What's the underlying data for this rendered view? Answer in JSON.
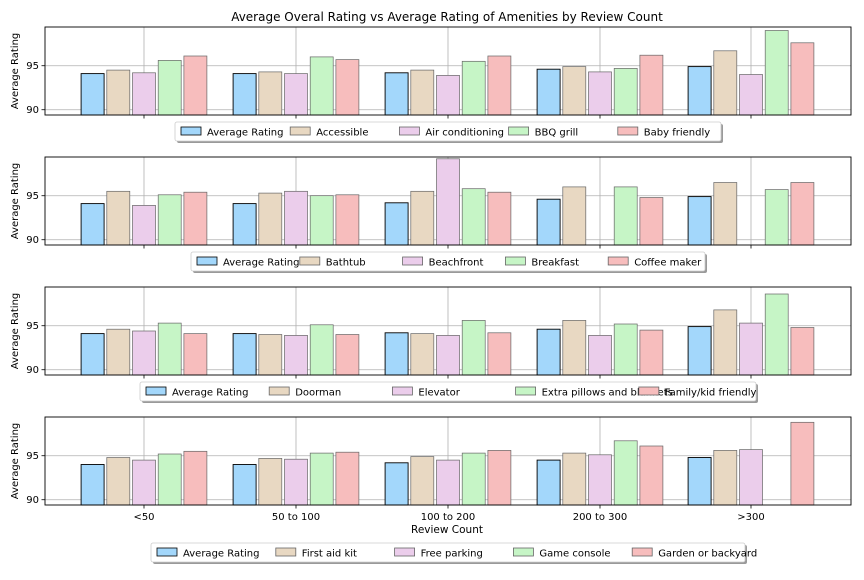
{
  "title": "Average Overal Rating vs Average Rating of Amenities by Review Count",
  "xlabel": "Review Count",
  "colors": {
    "series": [
      "#a3d7fb",
      "#e8d8c2",
      "#ebcdeb",
      "#c6f5c6",
      "#f7bdbd"
    ],
    "edge_first": "#000000",
    "edge_other": "#666666",
    "grid": "#b0b0b0"
  },
  "chart_data": [
    {
      "type": "bar",
      "categories": [
        "<50",
        "50 to 100",
        "100 to 200",
        "200 to 300",
        ">300"
      ],
      "ylabel": "Average Rating",
      "yticks": [
        90,
        95
      ],
      "ylim": [
        89.4,
        99.4
      ],
      "grid": true,
      "legend_position": "below",
      "series": [
        {
          "name": "Average Rating",
          "values": [
            94.1,
            94.1,
            94.2,
            94.6,
            94.9
          ]
        },
        {
          "name": "Accessible",
          "values": [
            94.5,
            94.3,
            94.5,
            94.9,
            96.7
          ]
        },
        {
          "name": "Air conditioning",
          "values": [
            94.2,
            94.1,
            93.9,
            94.3,
            94.0
          ]
        },
        {
          "name": "BBQ grill",
          "values": [
            95.6,
            96.0,
            95.5,
            94.7,
            99.0
          ]
        },
        {
          "name": "Baby friendly",
          "values": [
            96.1,
            95.7,
            96.1,
            96.2,
            97.6
          ]
        }
      ]
    },
    {
      "type": "bar",
      "categories": [
        "<50",
        "50 to 100",
        "100 to 200",
        "200 to 300",
        ">300"
      ],
      "ylabel": "Average Rating",
      "yticks": [
        90,
        95
      ],
      "ylim": [
        89.4,
        99.4
      ],
      "grid": true,
      "legend_position": "below",
      "series": [
        {
          "name": "Average Rating",
          "values": [
            94.1,
            94.1,
            94.2,
            94.6,
            94.9
          ]
        },
        {
          "name": "Bathtub",
          "values": [
            95.5,
            95.3,
            95.5,
            96.0,
            96.5
          ]
        },
        {
          "name": "Beachfront",
          "values": [
            93.9,
            95.5,
            99.2,
            null,
            null
          ]
        },
        {
          "name": "Breakfast",
          "values": [
            95.1,
            95.0,
            95.8,
            96.0,
            95.7
          ]
        },
        {
          "name": "Coffee maker",
          "values": [
            95.4,
            95.1,
            95.4,
            94.8,
            96.5
          ]
        }
      ]
    },
    {
      "type": "bar",
      "categories": [
        "<50",
        "50 to 100",
        "100 to 200",
        "200 to 300",
        ">300"
      ],
      "ylabel": "Average Rating",
      "yticks": [
        90,
        95
      ],
      "ylim": [
        89.4,
        99.4
      ],
      "grid": true,
      "legend_position": "below",
      "series": [
        {
          "name": "Average Rating",
          "values": [
            94.1,
            94.1,
            94.2,
            94.6,
            94.9
          ]
        },
        {
          "name": "Doorman",
          "values": [
            94.6,
            94.0,
            94.1,
            95.6,
            96.8
          ]
        },
        {
          "name": "Elevator",
          "values": [
            94.4,
            93.9,
            93.9,
            93.9,
            95.3
          ]
        },
        {
          "name": "Extra pillows and blankets",
          "values": [
            95.3,
            95.1,
            95.6,
            95.2,
            98.6
          ]
        },
        {
          "name": "Family/kid friendly",
          "values": [
            94.1,
            94.0,
            94.2,
            94.5,
            94.8
          ]
        }
      ]
    },
    {
      "type": "bar",
      "categories": [
        "<50",
        "50 to 100",
        "100 to 200",
        "200 to 300",
        ">300"
      ],
      "ylabel": "Average Rating",
      "yticks": [
        90,
        95
      ],
      "ylim": [
        89.4,
        99.4
      ],
      "grid": true,
      "legend_position": "below",
      "series": [
        {
          "name": "Average Rating",
          "values": [
            94.0,
            94.0,
            94.2,
            94.5,
            94.8
          ]
        },
        {
          "name": "First aid kit",
          "values": [
            94.8,
            94.7,
            94.9,
            95.3,
            95.6
          ]
        },
        {
          "name": "Free parking",
          "values": [
            94.5,
            94.6,
            94.5,
            95.1,
            95.7
          ]
        },
        {
          "name": "Game console",
          "values": [
            95.2,
            95.3,
            95.3,
            96.7,
            null
          ]
        },
        {
          "name": "Garden or backyard",
          "values": [
            95.5,
            95.4,
            95.6,
            96.1,
            98.8
          ]
        }
      ]
    }
  ]
}
